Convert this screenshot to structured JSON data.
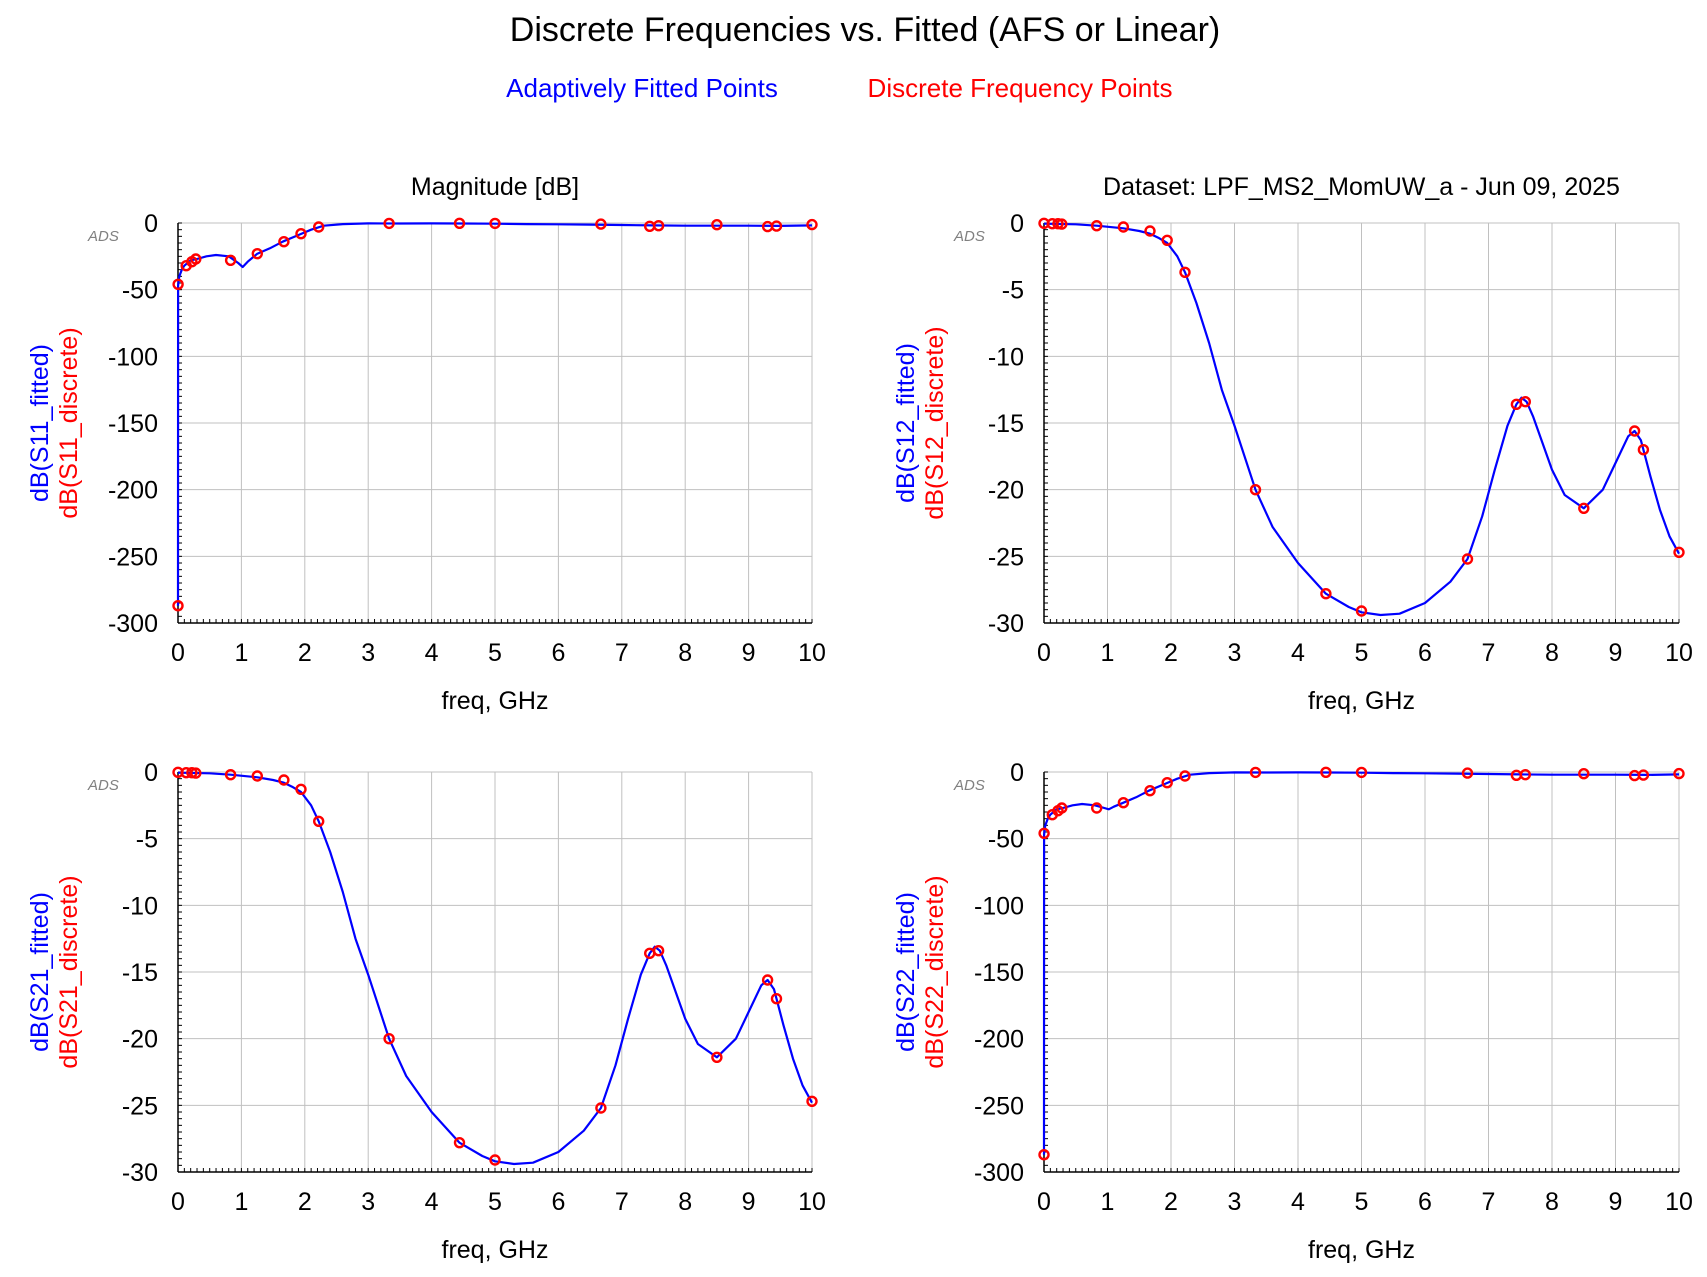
{
  "page": {
    "title": "Discrete Frequencies vs. Fitted (AFS or Linear)",
    "legend_fitted": "Adaptively Fitted Points",
    "legend_discrete": "Discrete Frequency Points",
    "watermark": "ADS"
  },
  "colors": {
    "fitted": "#0000ff",
    "discrete": "#ff0000",
    "grid": "#c0c0c0",
    "axis": "#000000",
    "text": "#000000"
  },
  "chart_data": [
    {
      "type": "line",
      "panel": "top-left",
      "title": "Magnitude [dB]",
      "xlabel": "freq, GHz",
      "ylabel_fitted": "dB(S11_fitted)",
      "ylabel_discrete": "dB(S11_discrete)",
      "xlim": [
        0,
        10
      ],
      "ylim": [
        -300,
        0
      ],
      "xticks": [
        "0",
        "1",
        "2",
        "3",
        "4",
        "5",
        "6",
        "7",
        "8",
        "9",
        "10"
      ],
      "yticks": [
        "0",
        "-50",
        "-100",
        "-150",
        "-200",
        "-250",
        "-300"
      ],
      "grid": true,
      "series": [
        {
          "role": "fitted",
          "x": [
            0,
            0.001,
            0.02,
            0.06,
            0.1,
            0.15,
            0.2,
            0.3,
            0.45,
            0.6,
            0.8,
            0.95,
            1.02,
            1.1,
            1.25,
            1.45,
            1.65,
            1.9,
            2.1,
            2.3,
            2.6,
            3,
            3.5,
            4,
            4.5,
            5,
            5.5,
            6,
            6.5,
            7,
            7.5,
            8,
            8.5,
            9,
            9.5,
            10
          ],
          "y": [
            -287,
            -47,
            -40,
            -35,
            -32,
            -30,
            -28,
            -27,
            -25,
            -24,
            -25,
            -30,
            -33,
            -29,
            -23,
            -19,
            -14,
            -9,
            -5,
            -2,
            -0.8,
            -0.3,
            -0.4,
            -0.3,
            -0.4,
            -0.5,
            -0.8,
            -1.0,
            -1.2,
            -1.5,
            -1.8,
            -2.0,
            -2.0,
            -2.0,
            -2.2,
            -1.8
          ]
        },
        {
          "role": "discrete",
          "x": [
            0,
            0.001,
            0.13,
            0.22,
            0.28,
            0.83,
            1.25,
            1.67,
            1.94,
            2.22,
            3.33,
            4.44,
            5.0,
            6.67,
            7.44,
            7.58,
            8.5,
            9.3,
            9.44,
            10.0
          ],
          "y": [
            -287,
            -46,
            -32,
            -29,
            -27,
            -28,
            -23,
            -14,
            -8,
            -3,
            -0.3,
            -0.2,
            -0.3,
            -0.8,
            -2.5,
            -2.0,
            -1.3,
            -2.7,
            -2.3,
            -1.2
          ]
        }
      ]
    },
    {
      "type": "line",
      "panel": "top-right",
      "title": "Dataset: LPF_MS2_MomUW_a - Jun 09, 2025",
      "xlabel": "freq, GHz",
      "ylabel_fitted": "dB(S12_fitted)",
      "ylabel_discrete": "dB(S12_discrete)",
      "xlim": [
        0,
        10
      ],
      "ylim": [
        -30,
        0
      ],
      "xticks": [
        "0",
        "1",
        "2",
        "3",
        "4",
        "5",
        "6",
        "7",
        "8",
        "9",
        "10"
      ],
      "yticks": [
        "0",
        "-5",
        "-10",
        "-15",
        "-20",
        "-25",
        "-30"
      ],
      "grid": true,
      "series": [
        {
          "role": "fitted",
          "x": [
            0,
            0.5,
            0.83,
            1.25,
            1.5,
            1.67,
            1.8,
            1.94,
            2.1,
            2.22,
            2.4,
            2.6,
            2.8,
            3.0,
            3.33,
            3.6,
            4.0,
            4.44,
            4.8,
            5.0,
            5.3,
            5.6,
            6.0,
            6.4,
            6.67,
            6.9,
            7.1,
            7.3,
            7.44,
            7.52,
            7.6,
            7.7,
            7.85,
            8.0,
            8.2,
            8.5,
            8.8,
            9.0,
            9.2,
            9.3,
            9.4,
            9.44,
            9.55,
            9.7,
            9.85,
            10.0
          ],
          "y": [
            -0.05,
            -0.1,
            -0.2,
            -0.4,
            -0.6,
            -0.8,
            -1.1,
            -1.5,
            -2.5,
            -3.7,
            -6.0,
            -9.0,
            -12.5,
            -15.2,
            -20.0,
            -22.8,
            -25.5,
            -27.8,
            -28.8,
            -29.2,
            -29.4,
            -29.3,
            -28.5,
            -26.9,
            -25.2,
            -22.0,
            -18.5,
            -15.2,
            -13.6,
            -13.1,
            -13.4,
            -14.5,
            -16.5,
            -18.5,
            -20.4,
            -21.4,
            -20.0,
            -18.0,
            -16.0,
            -15.6,
            -16.3,
            -17.0,
            -19.0,
            -21.5,
            -23.5,
            -24.8
          ]
        },
        {
          "role": "discrete",
          "x": [
            0,
            0.13,
            0.22,
            0.28,
            0.83,
            1.25,
            1.67,
            1.94,
            2.22,
            3.33,
            4.44,
            5.0,
            6.67,
            7.44,
            7.58,
            8.5,
            9.3,
            9.44,
            10.0
          ],
          "y": [
            -0.02,
            -0.05,
            -0.05,
            -0.08,
            -0.2,
            -0.3,
            -0.6,
            -1.3,
            -3.7,
            -20.0,
            -27.8,
            -29.1,
            -25.2,
            -13.6,
            -13.4,
            -21.4,
            -15.6,
            -17.0,
            -24.7
          ]
        }
      ]
    },
    {
      "type": "line",
      "panel": "bottom-left",
      "title": "",
      "xlabel": "freq, GHz",
      "ylabel_fitted": "dB(S21_fitted)",
      "ylabel_discrete": "dB(S21_discrete)",
      "xlim": [
        0,
        10
      ],
      "ylim": [
        -30,
        0
      ],
      "xticks": [
        "0",
        "1",
        "2",
        "3",
        "4",
        "5",
        "6",
        "7",
        "8",
        "9",
        "10"
      ],
      "yticks": [
        "0",
        "-5",
        "-10",
        "-15",
        "-20",
        "-25",
        "-30"
      ],
      "grid": true,
      "series": [
        {
          "role": "fitted",
          "x": [
            0,
            0.5,
            0.83,
            1.25,
            1.5,
            1.67,
            1.8,
            1.94,
            2.1,
            2.22,
            2.4,
            2.6,
            2.8,
            3.0,
            3.33,
            3.6,
            4.0,
            4.44,
            4.8,
            5.0,
            5.3,
            5.6,
            6.0,
            6.4,
            6.67,
            6.9,
            7.1,
            7.3,
            7.44,
            7.52,
            7.6,
            7.7,
            7.85,
            8.0,
            8.2,
            8.5,
            8.8,
            9.0,
            9.2,
            9.3,
            9.4,
            9.44,
            9.55,
            9.7,
            9.85,
            10.0
          ],
          "y": [
            -0.05,
            -0.1,
            -0.2,
            -0.4,
            -0.6,
            -0.8,
            -1.1,
            -1.5,
            -2.5,
            -3.7,
            -6.0,
            -9.0,
            -12.5,
            -15.2,
            -20.0,
            -22.8,
            -25.5,
            -27.8,
            -28.8,
            -29.2,
            -29.4,
            -29.3,
            -28.5,
            -26.9,
            -25.2,
            -22.0,
            -18.5,
            -15.2,
            -13.6,
            -13.1,
            -13.4,
            -14.5,
            -16.5,
            -18.5,
            -20.4,
            -21.4,
            -20.0,
            -18.0,
            -16.0,
            -15.6,
            -16.3,
            -17.0,
            -19.0,
            -21.5,
            -23.5,
            -24.8
          ]
        },
        {
          "role": "discrete",
          "x": [
            0,
            0.13,
            0.22,
            0.28,
            0.83,
            1.25,
            1.67,
            1.94,
            2.22,
            3.33,
            4.44,
            5.0,
            6.67,
            7.44,
            7.58,
            8.5,
            9.3,
            9.44,
            10.0
          ],
          "y": [
            -0.02,
            -0.05,
            -0.05,
            -0.08,
            -0.2,
            -0.3,
            -0.6,
            -1.3,
            -3.7,
            -20.0,
            -27.8,
            -29.1,
            -25.2,
            -13.6,
            -13.4,
            -21.4,
            -15.6,
            -17.0,
            -24.7
          ]
        }
      ]
    },
    {
      "type": "line",
      "panel": "bottom-right",
      "title": "",
      "xlabel": "freq, GHz",
      "ylabel_fitted": "dB(S22_fitted)",
      "ylabel_discrete": "dB(S22_discrete)",
      "xlim": [
        0,
        10
      ],
      "ylim": [
        -300,
        0
      ],
      "xticks": [
        "0",
        "1",
        "2",
        "3",
        "4",
        "5",
        "6",
        "7",
        "8",
        "9",
        "10"
      ],
      "yticks": [
        "0",
        "-50",
        "-100",
        "-150",
        "-200",
        "-250",
        "-300"
      ],
      "grid": true,
      "series": [
        {
          "role": "fitted",
          "x": [
            0,
            0.001,
            0.02,
            0.06,
            0.1,
            0.15,
            0.2,
            0.3,
            0.45,
            0.6,
            0.8,
            0.95,
            1.02,
            1.1,
            1.25,
            1.45,
            1.65,
            1.9,
            2.1,
            2.3,
            2.6,
            3,
            3.5,
            4,
            4.5,
            5,
            5.5,
            6,
            6.5,
            7,
            7.5,
            8,
            8.5,
            9,
            9.5,
            10
          ],
          "y": [
            -287,
            -47,
            -40,
            -35,
            -32,
            -30,
            -28,
            -27,
            -25,
            -24,
            -25,
            -27,
            -28,
            -26,
            -23,
            -19,
            -14,
            -9,
            -5,
            -2,
            -0.8,
            -0.3,
            -0.4,
            -0.3,
            -0.4,
            -0.5,
            -0.8,
            -1.0,
            -1.2,
            -1.5,
            -1.8,
            -2.0,
            -2.0,
            -2.0,
            -2.2,
            -1.8
          ]
        },
        {
          "role": "discrete",
          "x": [
            0,
            0.001,
            0.13,
            0.22,
            0.28,
            0.83,
            1.25,
            1.67,
            1.94,
            2.22,
            3.33,
            4.44,
            5.0,
            6.67,
            7.44,
            7.58,
            8.5,
            9.3,
            9.44,
            10.0
          ],
          "y": [
            -287,
            -46,
            -32,
            -29,
            -27,
            -27,
            -23,
            -14,
            -8,
            -3,
            -0.3,
            -0.2,
            -0.3,
            -0.8,
            -2.5,
            -2.0,
            -1.3,
            -2.7,
            -2.3,
            -1.2
          ]
        }
      ]
    }
  ]
}
